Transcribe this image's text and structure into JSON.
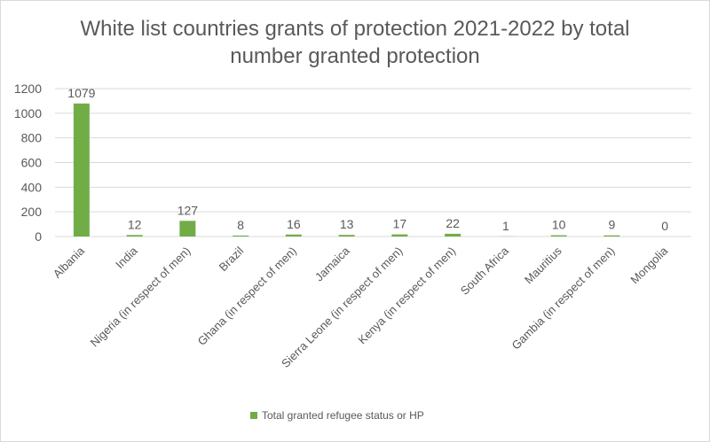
{
  "chart_data": {
    "type": "bar",
    "title_lines": [
      "White list countries grants of protection 2021-2022 by total",
      "number granted protection"
    ],
    "categories": [
      "Albania",
      "India",
      "Nigeria (in respect of men)",
      "Brazil",
      "Ghana (in respect of men)",
      "Jamaica",
      "Sierra Leone (in respect of men)",
      "Kenya (in respect of men)",
      "South Africa",
      "Mauritius",
      "Gambia (in respect of men)",
      "Mongolia"
    ],
    "series": [
      {
        "name": "Total granted refugee status or HP",
        "values": [
          1079,
          12,
          127,
          8,
          16,
          13,
          17,
          22,
          1,
          10,
          9,
          0
        ],
        "color": "#70ad47"
      }
    ],
    "ylim": [
      0,
      1200
    ],
    "yticks": [
      0,
      200,
      400,
      600,
      800,
      1000,
      1200
    ],
    "grid": true,
    "legend": "bottom"
  }
}
